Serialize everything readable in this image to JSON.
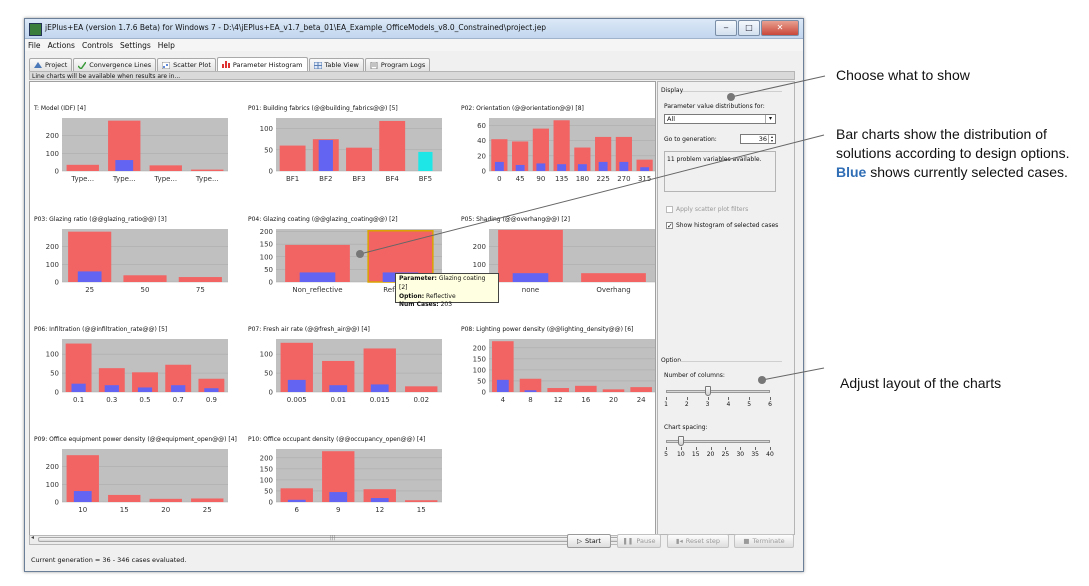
{
  "window": {
    "title": "jEPlus+EA (version 1.7.6 Beta) for Windows 7 - D:\\4\\jEPlus+EA_v1.7_beta_01\\EA_Example_OfficeModels_v8.0_Constrained\\project.jep",
    "min": "‒",
    "max": "□",
    "close": "✕"
  },
  "menu": [
    "File",
    "Actions",
    "Controls",
    "Settings",
    "Help"
  ],
  "tabs": [
    {
      "label": "Project",
      "icon": "project-icon",
      "active": false
    },
    {
      "label": "Convergence Lines",
      "icon": "check-icon",
      "active": false
    },
    {
      "label": "Scatter Plot",
      "icon": "scatter-icon",
      "active": false
    },
    {
      "label": "Parameter Histogram",
      "icon": "histogram-icon",
      "active": true
    },
    {
      "label": "Table View",
      "icon": "table-icon",
      "active": false
    },
    {
      "label": "Program Logs",
      "icon": "log-icon",
      "active": false
    }
  ],
  "info_text": "Line charts will be available when results are in...",
  "colors": {
    "red": "#f26464",
    "blue": "#6464f2",
    "cyan": "#1ee6e6",
    "plot_bg": "#c0c0c0",
    "highlight": "#d9a400"
  },
  "chart_data": [
    {
      "type": "bar",
      "title": "T: Model (IDF) [4]",
      "categories": [
        "Type...",
        "Type...",
        "Type...",
        "Type..."
      ],
      "ylim": [
        0,
        300
      ],
      "yticks": [
        0,
        100,
        200
      ],
      "series": [
        {
          "values": [
            35,
            285,
            32,
            8
          ]
        },
        {
          "values": [
            0,
            62,
            0,
            0
          ]
        }
      ]
    },
    {
      "type": "bar",
      "title": "P01: Building fabrics (@@building_fabrics@@) [5]",
      "categories": [
        "BF1",
        "BF2",
        "BF3",
        "BF4",
        "BF5"
      ],
      "ylim": [
        0,
        125
      ],
      "yticks": [
        0,
        50,
        100
      ],
      "series": [
        {
          "values": [
            60,
            75,
            55,
            118,
            0
          ]
        },
        {
          "values": [
            0,
            73,
            0,
            0,
            45
          ]
        }
      ],
      "cyan_index": 4
    },
    {
      "type": "bar",
      "title": "P02: Orientation (@@orientation@@) [8]",
      "categories": [
        "0",
        "45",
        "90",
        "135",
        "180",
        "225",
        "270",
        "315"
      ],
      "ylim": [
        0,
        70
      ],
      "yticks": [
        0,
        20,
        40,
        60
      ],
      "series": [
        {
          "values": [
            42,
            39,
            56,
            67,
            31,
            45,
            45,
            15
          ]
        },
        {
          "values": [
            12,
            8,
            10,
            9,
            9,
            12,
            12,
            5
          ]
        }
      ]
    },
    {
      "type": "bar",
      "title": "P03: Glazing ratio (@@glazing_ratio@@) [3]",
      "categories": [
        "25",
        "50",
        "75"
      ],
      "ylim": [
        0,
        300
      ],
      "yticks": [
        0,
        100,
        200
      ],
      "series": [
        {
          "values": [
            285,
            38,
            28
          ]
        },
        {
          "values": [
            60,
            0,
            0
          ]
        }
      ]
    },
    {
      "type": "bar",
      "title": "P04: Glazing coating (@@glazing_coating@@) [2]",
      "categories": [
        "Non_reflective",
        "Reflective"
      ],
      "ylim": [
        0,
        210
      ],
      "yticks": [
        0,
        50,
        100,
        150,
        200
      ],
      "series": [
        {
          "values": [
            147,
            203
          ]
        },
        {
          "values": [
            38,
            38
          ]
        }
      ],
      "highlight_index": 1
    },
    {
      "type": "bar",
      "title": "P05: Shading (@@overhang@@) [2]",
      "categories": [
        "none",
        "Overhang"
      ],
      "ylim": [
        0,
        300
      ],
      "yticks": [
        0,
        100,
        200
      ],
      "series": [
        {
          "values": [
            295,
            50
          ]
        },
        {
          "values": [
            50,
            0
          ]
        }
      ]
    },
    {
      "type": "bar",
      "title": "P06: Infiltration (@@infiltration_rate@@) [5]",
      "categories": [
        "0.1",
        "0.3",
        "0.5",
        "0.7",
        "0.9"
      ],
      "ylim": [
        0,
        140
      ],
      "yticks": [
        0,
        50,
        100
      ],
      "series": [
        {
          "values": [
            128,
            63,
            52,
            72,
            35
          ]
        },
        {
          "values": [
            22,
            18,
            12,
            18,
            10
          ]
        }
      ]
    },
    {
      "type": "bar",
      "title": "P07: Fresh air rate (@@fresh_air@@) [4]",
      "categories": [
        "0.005",
        "0.01",
        "0.015",
        "0.02"
      ],
      "ylim": [
        0,
        140
      ],
      "yticks": [
        0,
        50,
        100
      ],
      "series": [
        {
          "values": [
            130,
            82,
            115,
            15
          ]
        },
        {
          "values": [
            32,
            18,
            20,
            0
          ]
        }
      ]
    },
    {
      "type": "bar",
      "title": "P08: Lighting power density (@@lighting_density@@) [6]",
      "categories": [
        "4",
        "8",
        "12",
        "16",
        "20",
        "24"
      ],
      "ylim": [
        0,
        240
      ],
      "yticks": [
        0,
        50,
        100,
        150,
        200
      ],
      "series": [
        {
          "values": [
            230,
            60,
            18,
            28,
            12,
            22
          ]
        },
        {
          "values": [
            55,
            8,
            0,
            0,
            0,
            0
          ]
        }
      ]
    },
    {
      "type": "bar",
      "title": "P09: Office equipment power density (@@equipment_open@@) [4]",
      "categories": [
        "10",
        "15",
        "20",
        "25"
      ],
      "ylim": [
        0,
        300
      ],
      "yticks": [
        0,
        100,
        200
      ],
      "series": [
        {
          "values": [
            265,
            40,
            18,
            20
          ]
        },
        {
          "values": [
            62,
            0,
            0,
            0
          ]
        }
      ]
    },
    {
      "type": "bar",
      "title": "P10: Office occupant density (@@occupancy_open@@) [4]",
      "categories": [
        "6",
        "9",
        "12",
        "15"
      ],
      "ylim": [
        0,
        240
      ],
      "yticks": [
        0,
        50,
        100,
        150,
        200
      ],
      "series": [
        {
          "values": [
            62,
            230,
            58,
            8
          ]
        },
        {
          "values": [
            10,
            45,
            18,
            0
          ]
        }
      ]
    }
  ],
  "tooltip": {
    "k1": "Parameter:",
    "v1": " Glazing coating [2]",
    "k2": "Option:",
    "v2": " Reflective",
    "k3": "Num Cases:",
    "v3": " 203"
  },
  "panel": {
    "display_title": "Display",
    "dist_label": "Parameter value distributions for:",
    "dist_value": "All",
    "goto_label": "Go to generation:",
    "goto_value": "36",
    "problem_text": "11 problem variables available.",
    "apply_filter_label": "Apply scatter plot filters",
    "show_hist_label": "Show histogram of selected cases",
    "option_title": "Option",
    "columns_label": "Number of columns:",
    "columns_ticks": [
      "1",
      "2",
      "3",
      "4",
      "5",
      "6"
    ],
    "columns_value": 3,
    "spacing_label": "Chart spacing:",
    "spacing_ticks": [
      "5",
      "10",
      "15",
      "20",
      "25",
      "30",
      "35",
      "40"
    ],
    "spacing_value": 10
  },
  "status": "Current generation = 36 - 346 cases evaluated.",
  "buttons": {
    "start": "Start",
    "pause": "Pause",
    "reset": "Reset step",
    "terminate": "Terminate"
  },
  "annotations": {
    "show": "Choose what to show",
    "bar1": "Bar charts show the distribution of",
    "bar2": "solutions according to design options.",
    "bar3_blue": "Blue",
    "bar3_rest": " shows currently selected cases.",
    "layout": "Adjust layout of the charts"
  }
}
